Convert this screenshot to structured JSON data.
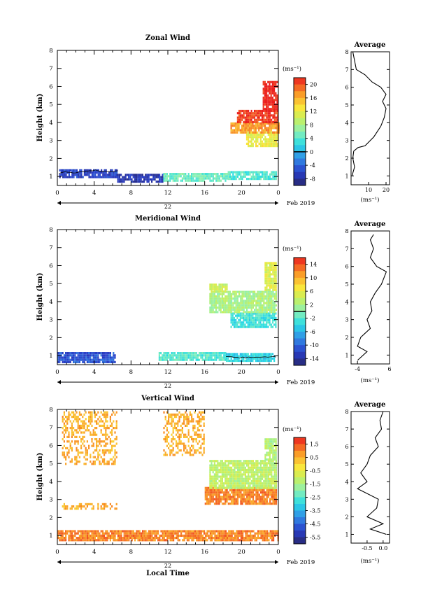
{
  "figure": {
    "x_date_label": "Feb 2019",
    "day_label": "22",
    "x_axis_label": "Local Time"
  },
  "chart_data": [
    {
      "type": "heatmap",
      "title": "Zonal Wind",
      "ylabel": "Height (km)",
      "xlabel": "",
      "x_ticks": [
        "0",
        "4",
        "8",
        "12",
        "16",
        "20",
        "0"
      ],
      "xlim": [
        0,
        24
      ],
      "ylim": [
        0.5,
        8
      ],
      "y_ticks": [
        "1",
        "2",
        "3",
        "4",
        "5",
        "6",
        "7",
        "8"
      ],
      "colorbar": {
        "unit": "(ms⁻¹)",
        "min": -10,
        "max": 22,
        "ticks": [
          20,
          16,
          12,
          8,
          4,
          0,
          -4,
          -8
        ],
        "zero_line": 0
      },
      "regions": [
        {
          "t0": 0.2,
          "t1": 6.5,
          "h0": 0.95,
          "h1": 1.4,
          "v": -6
        },
        {
          "t0": 6.5,
          "t1": 11.5,
          "h0": 0.75,
          "h1": 1.15,
          "v": -7
        },
        {
          "t0": 11.5,
          "t1": 18.5,
          "h0": 0.75,
          "h1": 1.2,
          "v": 5
        },
        {
          "t0": 18.5,
          "t1": 23.8,
          "h0": 0.85,
          "h1": 1.3,
          "v": 4
        },
        {
          "t0": 20.5,
          "t1": 24,
          "h0": 2.7,
          "h1": 3.5,
          "v": 12
        },
        {
          "t0": 18.8,
          "t1": 24,
          "h0": 3.5,
          "h1": 4.0,
          "v": 17
        },
        {
          "t0": 19.5,
          "t1": 24,
          "h0": 4.0,
          "h1": 4.7,
          "v": 21
        },
        {
          "t0": 22.3,
          "t1": 23.9,
          "h0": 4.7,
          "h1": 6.3,
          "v": 22
        }
      ],
      "average_profile": {
        "title": "Average",
        "xlabel": "(ms⁻¹)",
        "x_ticks": [
          "10",
          "20"
        ],
        "xlim": [
          0,
          22
        ],
        "points": [
          [
            0.5,
            1.0
          ],
          [
            2.0,
            1.5
          ],
          [
            1.0,
            2.0
          ],
          [
            1.5,
            2.4
          ],
          [
            4.0,
            2.6
          ],
          [
            8.0,
            2.7
          ],
          [
            13.0,
            3.2
          ],
          [
            17.0,
            3.8
          ],
          [
            19.0,
            4.3
          ],
          [
            20.0,
            4.8
          ],
          [
            18.0,
            5.2
          ],
          [
            20.0,
            5.6
          ],
          [
            17.0,
            6.0
          ],
          [
            12.0,
            6.3
          ],
          [
            8.0,
            6.7
          ],
          [
            3.0,
            7.0
          ],
          [
            2.0,
            7.5
          ],
          [
            1.0,
            8.0
          ]
        ]
      }
    },
    {
      "type": "heatmap",
      "title": "Meridional Wind",
      "ylabel": "Height (km)",
      "xlabel": "",
      "x_ticks": [
        "0",
        "4",
        "8",
        "12",
        "16",
        "20",
        "0"
      ],
      "xlim": [
        0,
        24
      ],
      "ylim": [
        0.5,
        8
      ],
      "y_ticks": [
        "1",
        "2",
        "3",
        "4",
        "5",
        "6",
        "7",
        "8"
      ],
      "colorbar": {
        "unit": "(ms⁻¹)",
        "min": -16,
        "max": 16,
        "ticks": [
          14,
          10,
          6,
          2,
          -2,
          -6,
          -10,
          -14
        ],
        "zero_line": 0
      },
      "regions": [
        {
          "t0": 0.0,
          "t1": 6.2,
          "h0": 0.7,
          "h1": 1.2,
          "v": -11
        },
        {
          "t0": 11.0,
          "t1": 18.3,
          "h0": 0.75,
          "h1": 1.2,
          "v": -2
        },
        {
          "t0": 18.3,
          "t1": 23.5,
          "h0": 0.75,
          "h1": 1.15,
          "v": -4
        },
        {
          "t0": 18.8,
          "t1": 23.8,
          "h0": 2.6,
          "h1": 3.4,
          "v": -3
        },
        {
          "t0": 16.5,
          "t1": 23.8,
          "h0": 3.4,
          "h1": 4.6,
          "v": 2
        },
        {
          "t0": 16.5,
          "t1": 18.5,
          "h0": 4.6,
          "h1": 5.0,
          "v": 4
        },
        {
          "t0": 22.5,
          "t1": 23.8,
          "h0": 4.6,
          "h1": 6.2,
          "v": 5
        }
      ],
      "average_profile": {
        "title": "Average",
        "xlabel": "(ms⁻¹)",
        "x_ticks": [
          "-4",
          "6"
        ],
        "xlim": [
          -6,
          6
        ],
        "points": [
          [
            -4.0,
            0.7
          ],
          [
            -1.0,
            1.2
          ],
          [
            -4.0,
            1.5
          ],
          [
            -3.0,
            2.0
          ],
          [
            0.0,
            2.5
          ],
          [
            -1.0,
            3.0
          ],
          [
            0.5,
            3.5
          ],
          [
            0.0,
            4.0
          ],
          [
            1.5,
            4.5
          ],
          [
            3.5,
            5.0
          ],
          [
            5.0,
            5.7
          ],
          [
            2.0,
            6.0
          ],
          [
            0.0,
            6.5
          ],
          [
            1.0,
            7.0
          ],
          [
            0.0,
            7.5
          ],
          [
            1.0,
            7.8
          ]
        ]
      }
    },
    {
      "type": "heatmap",
      "title": "Vertical Wind",
      "ylabel": "Height (km)",
      "xlabel": "Local Time",
      "x_ticks": [
        "0",
        "4",
        "8",
        "12",
        "16",
        "20",
        "0"
      ],
      "xlim": [
        0,
        24
      ],
      "ylim": [
        0.5,
        8
      ],
      "y_ticks": [
        "1",
        "2",
        "3",
        "4",
        "5",
        "6",
        "7",
        "8"
      ],
      "colorbar": {
        "unit": "(ms⁻¹)",
        "min": -6,
        "max": 2,
        "ticks": [
          1.5,
          0.5,
          -0.5,
          -1.5,
          -2.5,
          -3.5,
          -4.5,
          -5.5
        ],
        "zero_line": null
      },
      "regions": [
        {
          "t0": 0.0,
          "t1": 24,
          "h0": 0.8,
          "h1": 1.3,
          "v": 1.0
        },
        {
          "t0": 0.5,
          "t1": 6.5,
          "h0": 5.0,
          "h1": 7.9,
          "v": 0.5,
          "sparse": true
        },
        {
          "t0": 11.5,
          "t1": 16.0,
          "h0": 5.5,
          "h1": 7.9,
          "v": 0.5,
          "sparse": true
        },
        {
          "t0": 0.5,
          "t1": 6.5,
          "h0": 2.5,
          "h1": 2.8,
          "v": 0.5,
          "sparse": true
        },
        {
          "t0": 16.0,
          "t1": 23.8,
          "h0": 2.8,
          "h1": 3.7,
          "v": 1.0
        },
        {
          "t0": 16.5,
          "t1": 23.8,
          "h0": 3.7,
          "h1": 5.2,
          "v": -1.2
        },
        {
          "t0": 22.5,
          "t1": 23.8,
          "h0": 5.2,
          "h1": 6.4,
          "v": -1.4
        }
      ],
      "average_profile": {
        "title": "Average",
        "xlabel": "(ms⁻¹)",
        "x_ticks": [
          "-0.5",
          "0.0"
        ],
        "xlim": [
          -1.0,
          0.2
        ],
        "points": [
          [
            0.1,
            1.0
          ],
          [
            -0.4,
            1.3
          ],
          [
            0.0,
            1.6
          ],
          [
            -0.5,
            2.0
          ],
          [
            -0.2,
            2.5
          ],
          [
            -0.15,
            3.0
          ],
          [
            -0.8,
            3.6
          ],
          [
            -0.5,
            4.0
          ],
          [
            -0.7,
            4.5
          ],
          [
            -0.5,
            5.0
          ],
          [
            -0.4,
            5.5
          ],
          [
            -0.15,
            6.0
          ],
          [
            -0.25,
            6.5
          ],
          [
            -0.05,
            7.0
          ],
          [
            -0.1,
            7.5
          ],
          [
            0.0,
            8.0
          ]
        ]
      }
    }
  ]
}
